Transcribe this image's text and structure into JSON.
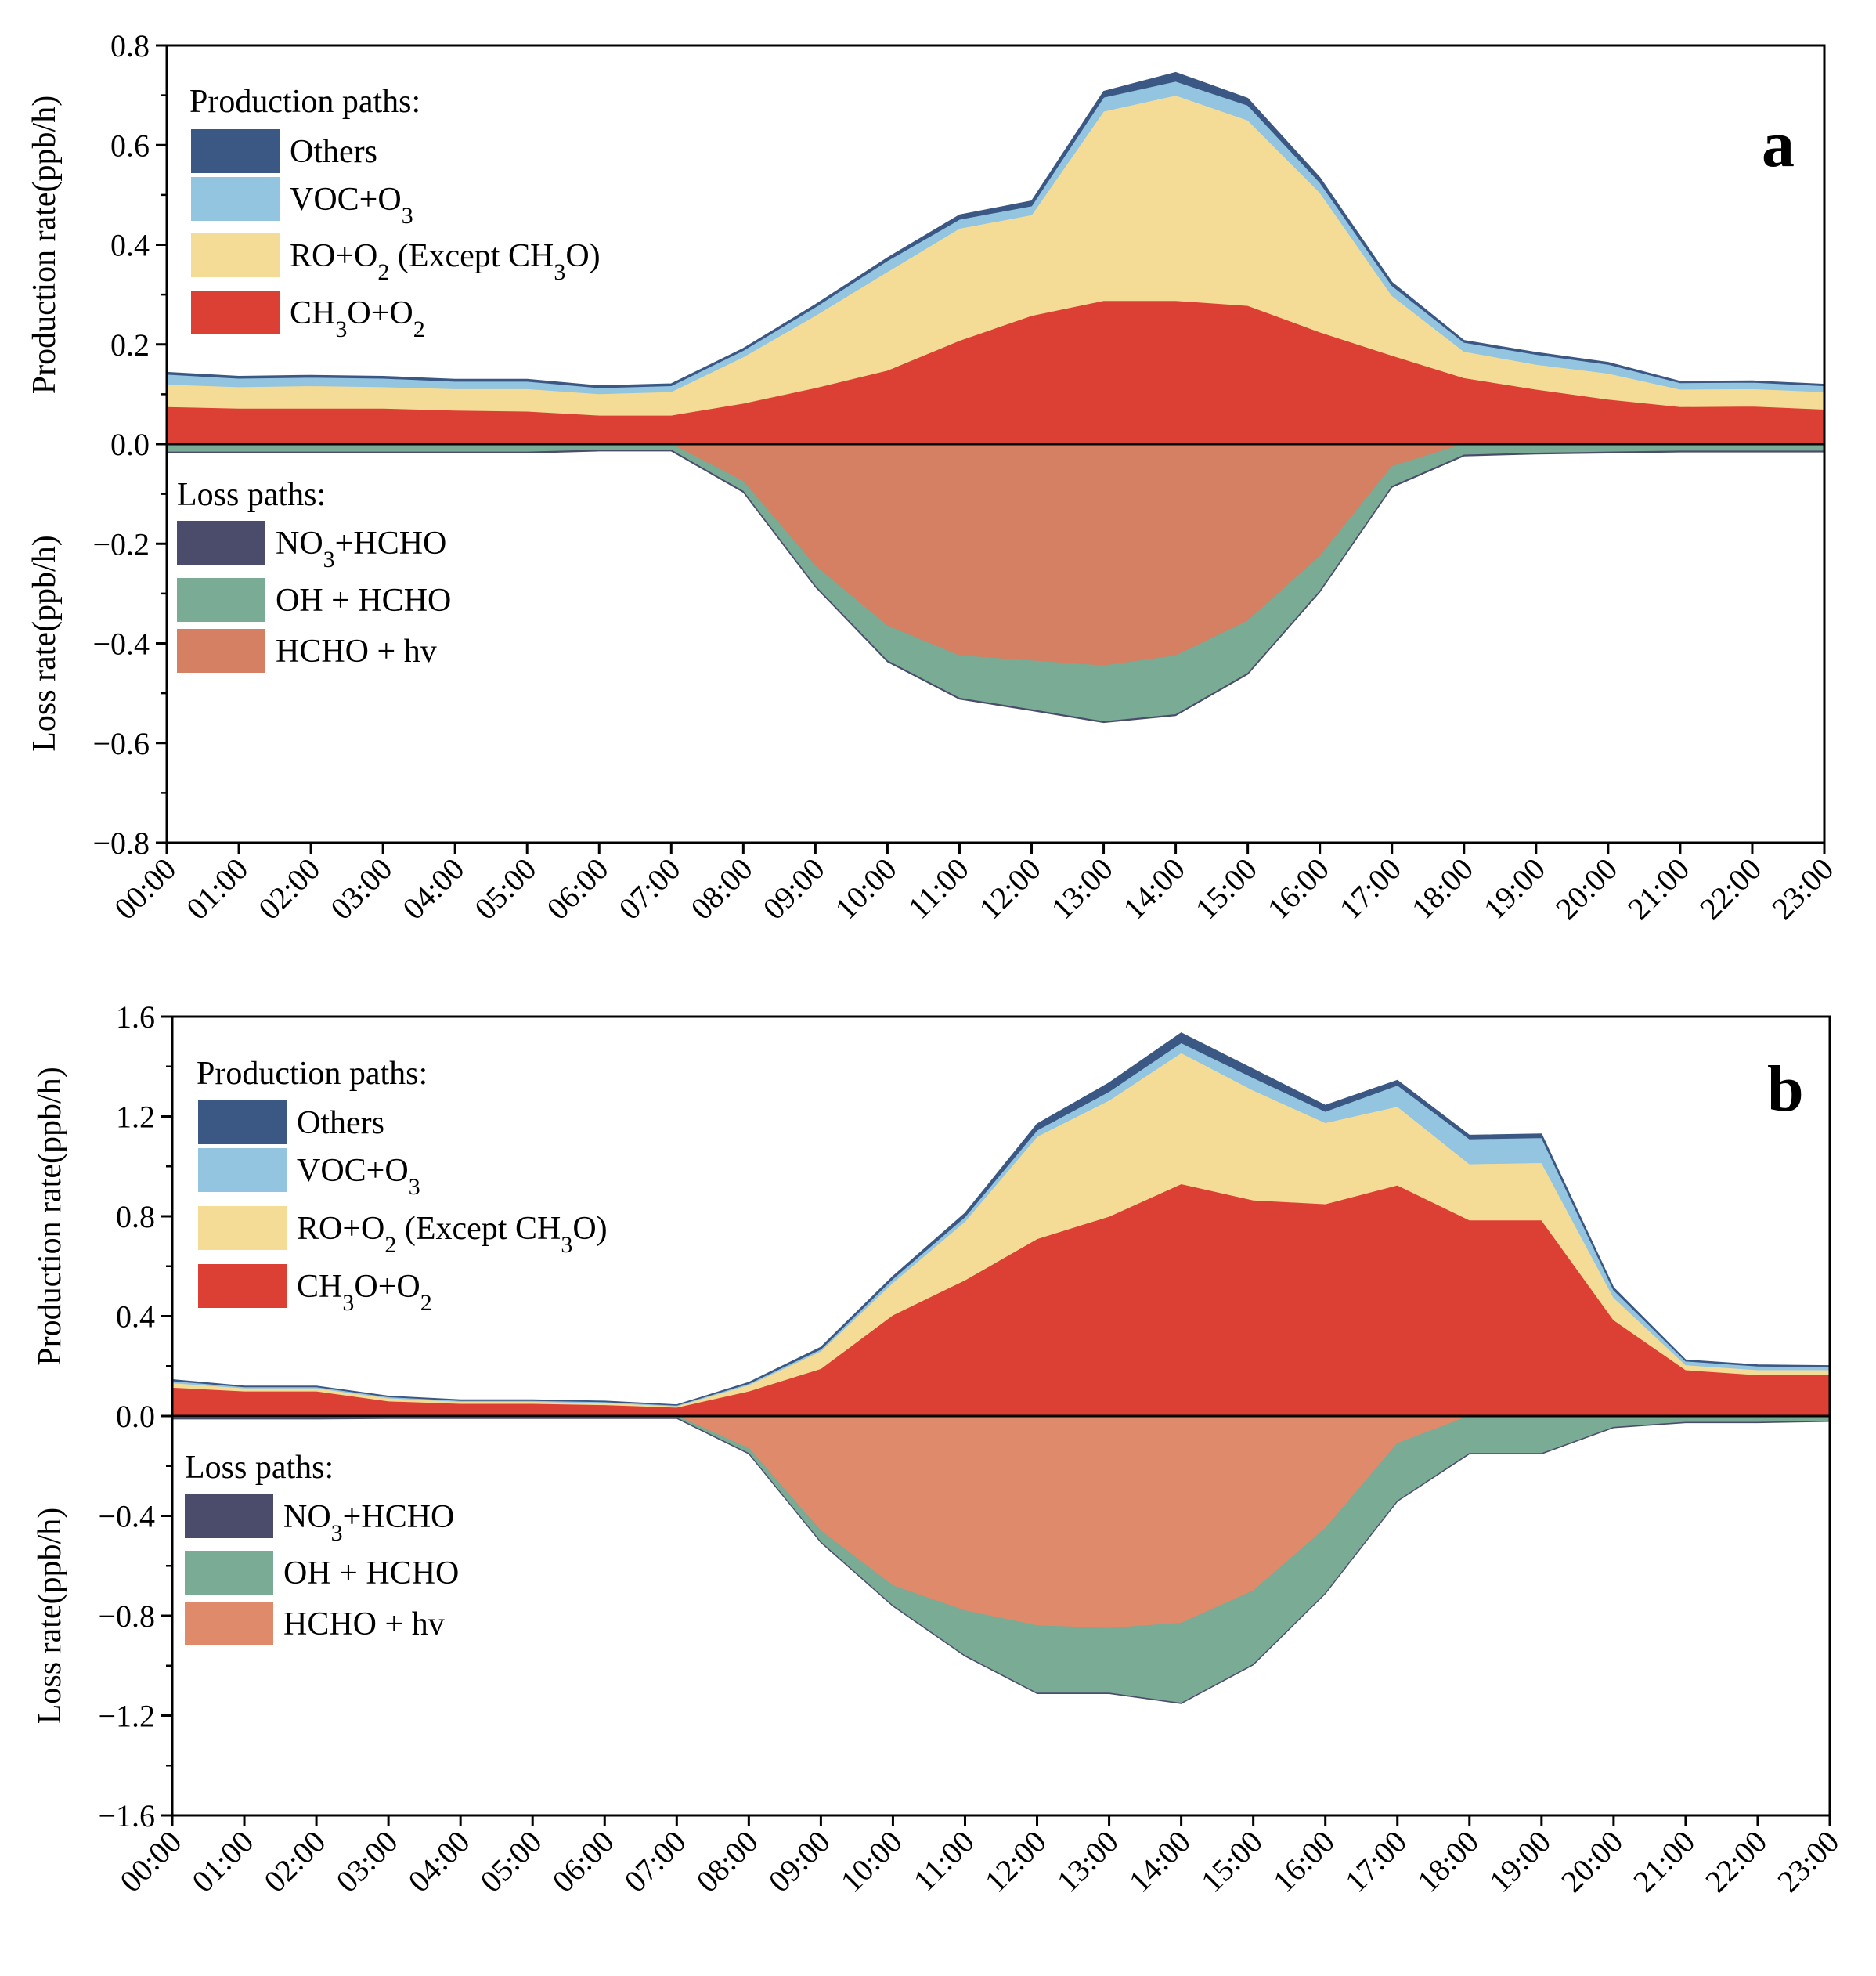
{
  "chart_data": [
    {
      "type": "area",
      "panel_label": "a",
      "categories": [
        "00:00",
        "01:00",
        "02:00",
        "03:00",
        "04:00",
        "05:00",
        "06:00",
        "07:00",
        "08:00",
        "09:00",
        "10:00",
        "11:00",
        "12:00",
        "13:00",
        "14:00",
        "15:00",
        "16:00",
        "17:00",
        "18:00",
        "19:00",
        "20:00",
        "21:00",
        "22:00",
        "23:00"
      ],
      "ylabel_top": "Production rate(ppb/h)",
      "ylabel_bottom": "Loss rate(ppb/h)",
      "ylim": [
        -0.8,
        0.8
      ],
      "yticks": [
        -0.8,
        -0.6,
        -0.4,
        -0.2,
        0.0,
        0.2,
        0.4,
        0.6,
        0.8
      ],
      "ytick_labels": [
        "−0.8",
        "−0.6",
        "−0.4",
        "−0.2",
        "0.0",
        "0.2",
        "0.4",
        "0.6",
        "0.8"
      ],
      "production_legend_title": "Production paths:",
      "loss_legend_title": "Loss paths:",
      "production_series": [
        {
          "name": "CH3O+O2",
          "sub": [
            "CH",
            "3",
            "O+O",
            "2"
          ],
          "color": "#dc4034",
          "values": [
            0.075,
            0.072,
            0.072,
            0.072,
            0.068,
            0.066,
            0.058,
            0.058,
            0.082,
            0.113,
            0.148,
            0.208,
            0.258,
            0.288,
            0.288,
            0.278,
            0.225,
            0.178,
            0.133,
            0.11,
            0.09,
            0.075,
            0.076,
            0.07
          ]
        },
        {
          "name": "RO+O2 (Except CH3O)",
          "sub": [
            "RO+O",
            "2",
            " (Except CH",
            "3",
            "O)"
          ],
          "color": "#f5dc96",
          "values": [
            0.045,
            0.043,
            0.045,
            0.043,
            0.043,
            0.045,
            0.043,
            0.047,
            0.093,
            0.145,
            0.198,
            0.225,
            0.202,
            0.38,
            0.412,
            0.372,
            0.28,
            0.12,
            0.053,
            0.05,
            0.052,
            0.035,
            0.035,
            0.035
          ]
        },
        {
          "name": "VOC+O3",
          "sub": [
            "VOC+O",
            "3"
          ],
          "color": "#93c4e0",
          "values": [
            0.02,
            0.017,
            0.017,
            0.017,
            0.015,
            0.015,
            0.012,
            0.012,
            0.013,
            0.017,
            0.022,
            0.018,
            0.018,
            0.028,
            0.028,
            0.03,
            0.02,
            0.02,
            0.018,
            0.02,
            0.018,
            0.013,
            0.013,
            0.012
          ]
        },
        {
          "name": "Others",
          "sub": [
            "Others"
          ],
          "color": "#3a5883",
          "values": [
            0.004,
            0.004,
            0.004,
            0.004,
            0.004,
            0.004,
            0.004,
            0.004,
            0.004,
            0.005,
            0.006,
            0.009,
            0.01,
            0.012,
            0.018,
            0.014,
            0.01,
            0.007,
            0.004,
            0.004,
            0.004,
            0.003,
            0.003,
            0.003
          ]
        }
      ],
      "loss_series": [
        {
          "name": "HCHO + hv",
          "sub": [
            "HCHO + hv"
          ],
          "color": "#d57f63",
          "values": [
            0.0,
            0.0,
            0.0,
            0.0,
            0.0,
            0.0,
            0.0,
            0.0,
            -0.075,
            -0.245,
            -0.365,
            -0.425,
            -0.435,
            -0.445,
            -0.425,
            -0.355,
            -0.225,
            -0.045,
            0.0,
            0.0,
            0.0,
            0.0,
            0.0,
            0.0
          ]
        },
        {
          "name": "OH + HCHO",
          "sub": [
            "OH + HCHO"
          ],
          "color": "#7aab95",
          "values": [
            -0.016,
            -0.016,
            -0.016,
            -0.016,
            -0.016,
            -0.016,
            -0.012,
            -0.012,
            -0.02,
            -0.04,
            -0.07,
            -0.085,
            -0.098,
            -0.112,
            -0.118,
            -0.105,
            -0.07,
            -0.04,
            -0.022,
            -0.018,
            -0.016,
            -0.014,
            -0.014,
            -0.014
          ]
        },
        {
          "name": "NO3+HCHO",
          "sub": [
            "NO",
            "3",
            "+HCHO"
          ],
          "color": "#4b4c6c",
          "values": [
            -0.002,
            -0.002,
            -0.002,
            -0.002,
            -0.002,
            -0.002,
            -0.002,
            -0.002,
            -0.002,
            -0.002,
            -0.002,
            -0.002,
            -0.002,
            -0.002,
            -0.002,
            -0.002,
            -0.002,
            -0.002,
            -0.002,
            -0.002,
            -0.002,
            -0.002,
            -0.002,
            -0.002
          ]
        }
      ]
    },
    {
      "type": "area",
      "panel_label": "b",
      "categories": [
        "00:00",
        "01:00",
        "02:00",
        "03:00",
        "04:00",
        "05:00",
        "06:00",
        "07:00",
        "08:00",
        "09:00",
        "10:00",
        "11:00",
        "12:00",
        "13:00",
        "14:00",
        "15:00",
        "16:00",
        "17:00",
        "18:00",
        "19:00",
        "20:00",
        "21:00",
        "22:00",
        "23:00"
      ],
      "ylabel_top": "Production rate(ppb/h)",
      "ylabel_bottom": "Loss rate(ppb/h)",
      "ylim": [
        -1.6,
        1.6
      ],
      "yticks": [
        -1.6,
        -1.2,
        -0.8,
        -0.4,
        0.0,
        0.4,
        0.8,
        1.2,
        1.6
      ],
      "ytick_labels": [
        "−1.6",
        "−1.2",
        "−0.8",
        "−0.4",
        "0.0",
        "0.4",
        "0.8",
        "1.2",
        "1.6"
      ],
      "production_legend_title": "Production paths:",
      "loss_legend_title": "Loss paths:",
      "production_series": [
        {
          "name": "CH3O+O2",
          "sub": [
            "CH",
            "3",
            "O+O",
            "2"
          ],
          "color": "#dc4034",
          "values": [
            0.115,
            0.1,
            0.1,
            0.06,
            0.05,
            0.05,
            0.045,
            0.035,
            0.1,
            0.19,
            0.405,
            0.545,
            0.71,
            0.8,
            0.93,
            0.865,
            0.85,
            0.925,
            0.785,
            0.785,
            0.385,
            0.185,
            0.165,
            0.165
          ]
        },
        {
          "name": "RO+O2 (Except CH3O)",
          "sub": [
            "RO+O",
            "2",
            " (Except CH",
            "3",
            "O)"
          ],
          "color": "#f5dc96",
          "values": [
            0.018,
            0.012,
            0.012,
            0.012,
            0.008,
            0.008,
            0.008,
            0.005,
            0.025,
            0.07,
            0.13,
            0.235,
            0.41,
            0.465,
            0.525,
            0.44,
            0.325,
            0.315,
            0.225,
            0.23,
            0.09,
            0.02,
            0.02,
            0.02
          ]
        },
        {
          "name": "VOC+O3",
          "sub": [
            "VOC+O",
            "3"
          ],
          "color": "#93c4e0",
          "values": [
            0.008,
            0.005,
            0.005,
            0.005,
            0.004,
            0.004,
            0.004,
            0.003,
            0.005,
            0.008,
            0.015,
            0.018,
            0.025,
            0.035,
            0.04,
            0.05,
            0.045,
            0.085,
            0.1,
            0.1,
            0.03,
            0.015,
            0.015,
            0.012
          ]
        },
        {
          "name": "Others",
          "sub": [
            "Others"
          ],
          "color": "#3a5883",
          "values": [
            0.005,
            0.003,
            0.003,
            0.003,
            0.003,
            0.003,
            0.003,
            0.002,
            0.005,
            0.008,
            0.01,
            0.015,
            0.025,
            0.035,
            0.04,
            0.035,
            0.025,
            0.02,
            0.015,
            0.015,
            0.01,
            0.005,
            0.005,
            0.005
          ]
        }
      ],
      "loss_series": [
        {
          "name": "HCHO + hv",
          "sub": [
            "HCHO + hv"
          ],
          "color": "#e08a6c",
          "values": [
            0.0,
            0.0,
            0.0,
            0.0,
            0.0,
            0.0,
            0.0,
            0.0,
            -0.13,
            -0.46,
            -0.68,
            -0.78,
            -0.84,
            -0.85,
            -0.83,
            -0.7,
            -0.45,
            -0.11,
            0.0,
            0.0,
            0.0,
            0.0,
            0.0,
            0.0
          ]
        },
        {
          "name": "OH + HCHO",
          "sub": [
            "OH + HCHO"
          ],
          "color": "#7aab95",
          "values": [
            -0.01,
            -0.01,
            -0.01,
            -0.008,
            -0.008,
            -0.008,
            -0.008,
            -0.008,
            -0.02,
            -0.045,
            -0.08,
            -0.18,
            -0.27,
            -0.26,
            -0.32,
            -0.295,
            -0.26,
            -0.23,
            -0.15,
            -0.15,
            -0.045,
            -0.025,
            -0.025,
            -0.02
          ]
        },
        {
          "name": "NO3+HCHO",
          "sub": [
            "NO",
            "3",
            "+HCHO"
          ],
          "color": "#4b4c6c",
          "values": [
            -0.002,
            -0.002,
            -0.002,
            -0.002,
            -0.002,
            -0.002,
            -0.002,
            -0.002,
            -0.002,
            -0.002,
            -0.002,
            -0.002,
            -0.002,
            -0.002,
            -0.002,
            -0.002,
            -0.002,
            -0.002,
            -0.002,
            -0.002,
            -0.002,
            -0.002,
            -0.002,
            -0.002
          ]
        }
      ]
    }
  ]
}
